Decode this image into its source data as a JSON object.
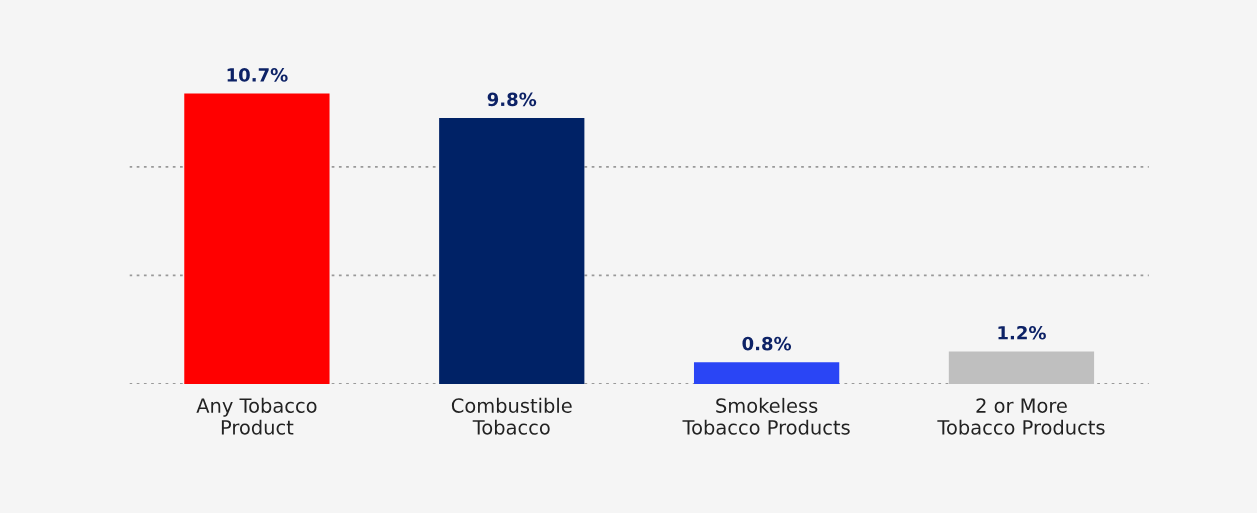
{
  "chart_data": {
    "type": "bar",
    "categories": [
      "Any Tobacco\nProduct",
      "Combustible\nTobacco",
      "Smokeless\nTobacco Products",
      "2 or More\nTobacco Products"
    ],
    "values": [
      10.7,
      9.8,
      0.8,
      1.2
    ],
    "colors": [
      "#ff0000",
      "#002266",
      "#2a45f5",
      "#bfbfbf"
    ],
    "value_labels": [
      "10.7%",
      "9.8%",
      "0.8%",
      "1.2%"
    ],
    "ref_lines": [
      {
        "axis": "y",
        "value": 0,
        "color": "#999999",
        "line_style": "dotted"
      },
      {
        "axis": "y",
        "value": 4,
        "color": "#999999",
        "line_style": "dotted"
      },
      {
        "axis": "y",
        "value": 8,
        "color": "#999999",
        "line_style": "dotted"
      }
    ],
    "tick_labels": "x"
  }
}
